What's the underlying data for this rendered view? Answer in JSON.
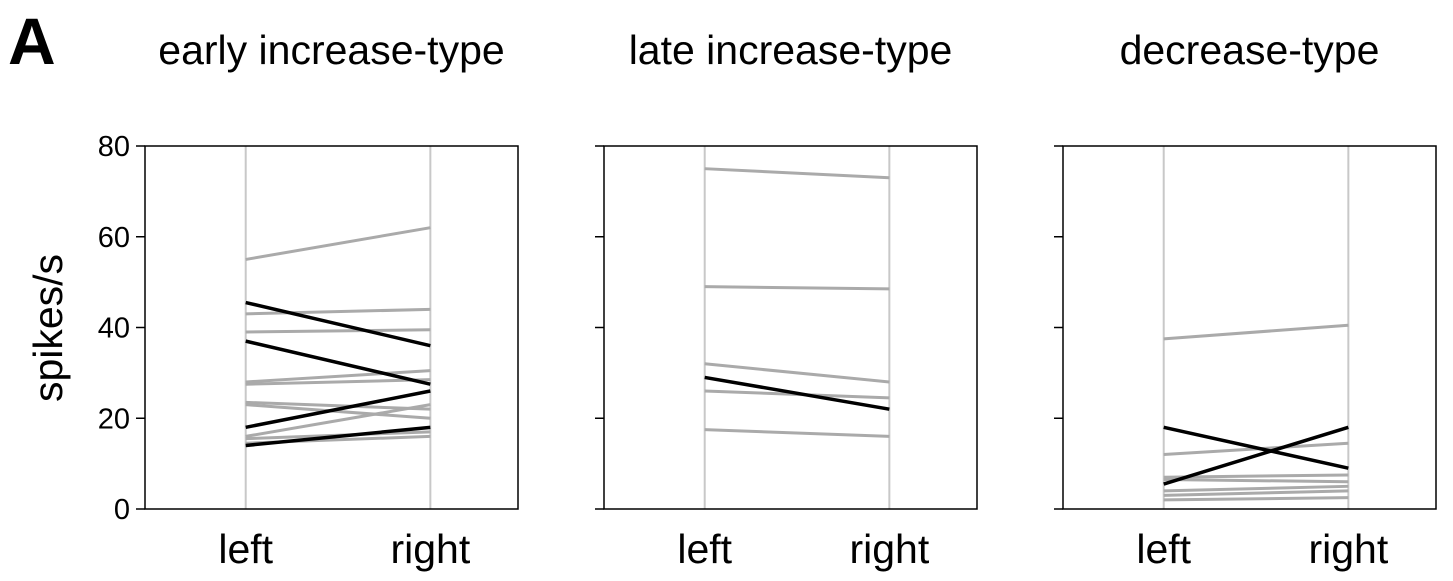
{
  "figure_label": "A",
  "chart_data": [
    {
      "type": "line",
      "title": "early increase-type",
      "ylabel": "spikes/s",
      "xlabel": "",
      "categories": [
        "left",
        "right"
      ],
      "ylim": [
        0,
        80
      ],
      "yticks": [
        0,
        20,
        40,
        60,
        80
      ],
      "grid": "vertical lines at categories",
      "series": [
        {
          "values": [
            55,
            62
          ],
          "color": "#aaaaaa"
        },
        {
          "values": [
            43,
            44
          ],
          "color": "#aaaaaa"
        },
        {
          "values": [
            39,
            39.5
          ],
          "color": "#aaaaaa"
        },
        {
          "values": [
            28,
            30.5
          ],
          "color": "#aaaaaa"
        },
        {
          "values": [
            27.5,
            28.5
          ],
          "color": "#aaaaaa"
        },
        {
          "values": [
            23.5,
            22
          ],
          "color": "#aaaaaa"
        },
        {
          "values": [
            23,
            20
          ],
          "color": "#aaaaaa"
        },
        {
          "values": [
            16,
            23
          ],
          "color": "#aaaaaa"
        },
        {
          "values": [
            15.5,
            17
          ],
          "color": "#aaaaaa"
        },
        {
          "values": [
            14.5,
            16
          ],
          "color": "#aaaaaa"
        },
        {
          "values": [
            45.5,
            36
          ],
          "color": "#000000"
        },
        {
          "values": [
            37,
            27.5
          ],
          "color": "#000000"
        },
        {
          "values": [
            18,
            26
          ],
          "color": "#000000"
        },
        {
          "values": [
            14,
            18
          ],
          "color": "#000000"
        }
      ]
    },
    {
      "type": "line",
      "title": "late increase-type",
      "categories": [
        "left",
        "right"
      ],
      "ylim": [
        0,
        80
      ],
      "series": [
        {
          "values": [
            75,
            73
          ],
          "color": "#aaaaaa"
        },
        {
          "values": [
            49,
            48.5
          ],
          "color": "#aaaaaa"
        },
        {
          "values": [
            32,
            28
          ],
          "color": "#aaaaaa"
        },
        {
          "values": [
            26,
            24.5
          ],
          "color": "#aaaaaa"
        },
        {
          "values": [
            17.5,
            16
          ],
          "color": "#aaaaaa"
        },
        {
          "values": [
            29,
            22
          ],
          "color": "#000000"
        }
      ]
    },
    {
      "type": "line",
      "title": "decrease-type",
      "categories": [
        "left",
        "right"
      ],
      "ylim": [
        0,
        80
      ],
      "series": [
        {
          "values": [
            37.5,
            40.5
          ],
          "color": "#aaaaaa"
        },
        {
          "values": [
            12,
            14.5
          ],
          "color": "#aaaaaa"
        },
        {
          "values": [
            7,
            7.5
          ],
          "color": "#aaaaaa"
        },
        {
          "values": [
            6.5,
            6
          ],
          "color": "#aaaaaa"
        },
        {
          "values": [
            4,
            5
          ],
          "color": "#aaaaaa"
        },
        {
          "values": [
            3,
            4
          ],
          "color": "#aaaaaa"
        },
        {
          "values": [
            2,
            2.5
          ],
          "color": "#aaaaaa"
        },
        {
          "values": [
            18,
            9
          ],
          "color": "#000000"
        },
        {
          "values": [
            5.5,
            18
          ],
          "color": "#000000"
        }
      ]
    }
  ]
}
